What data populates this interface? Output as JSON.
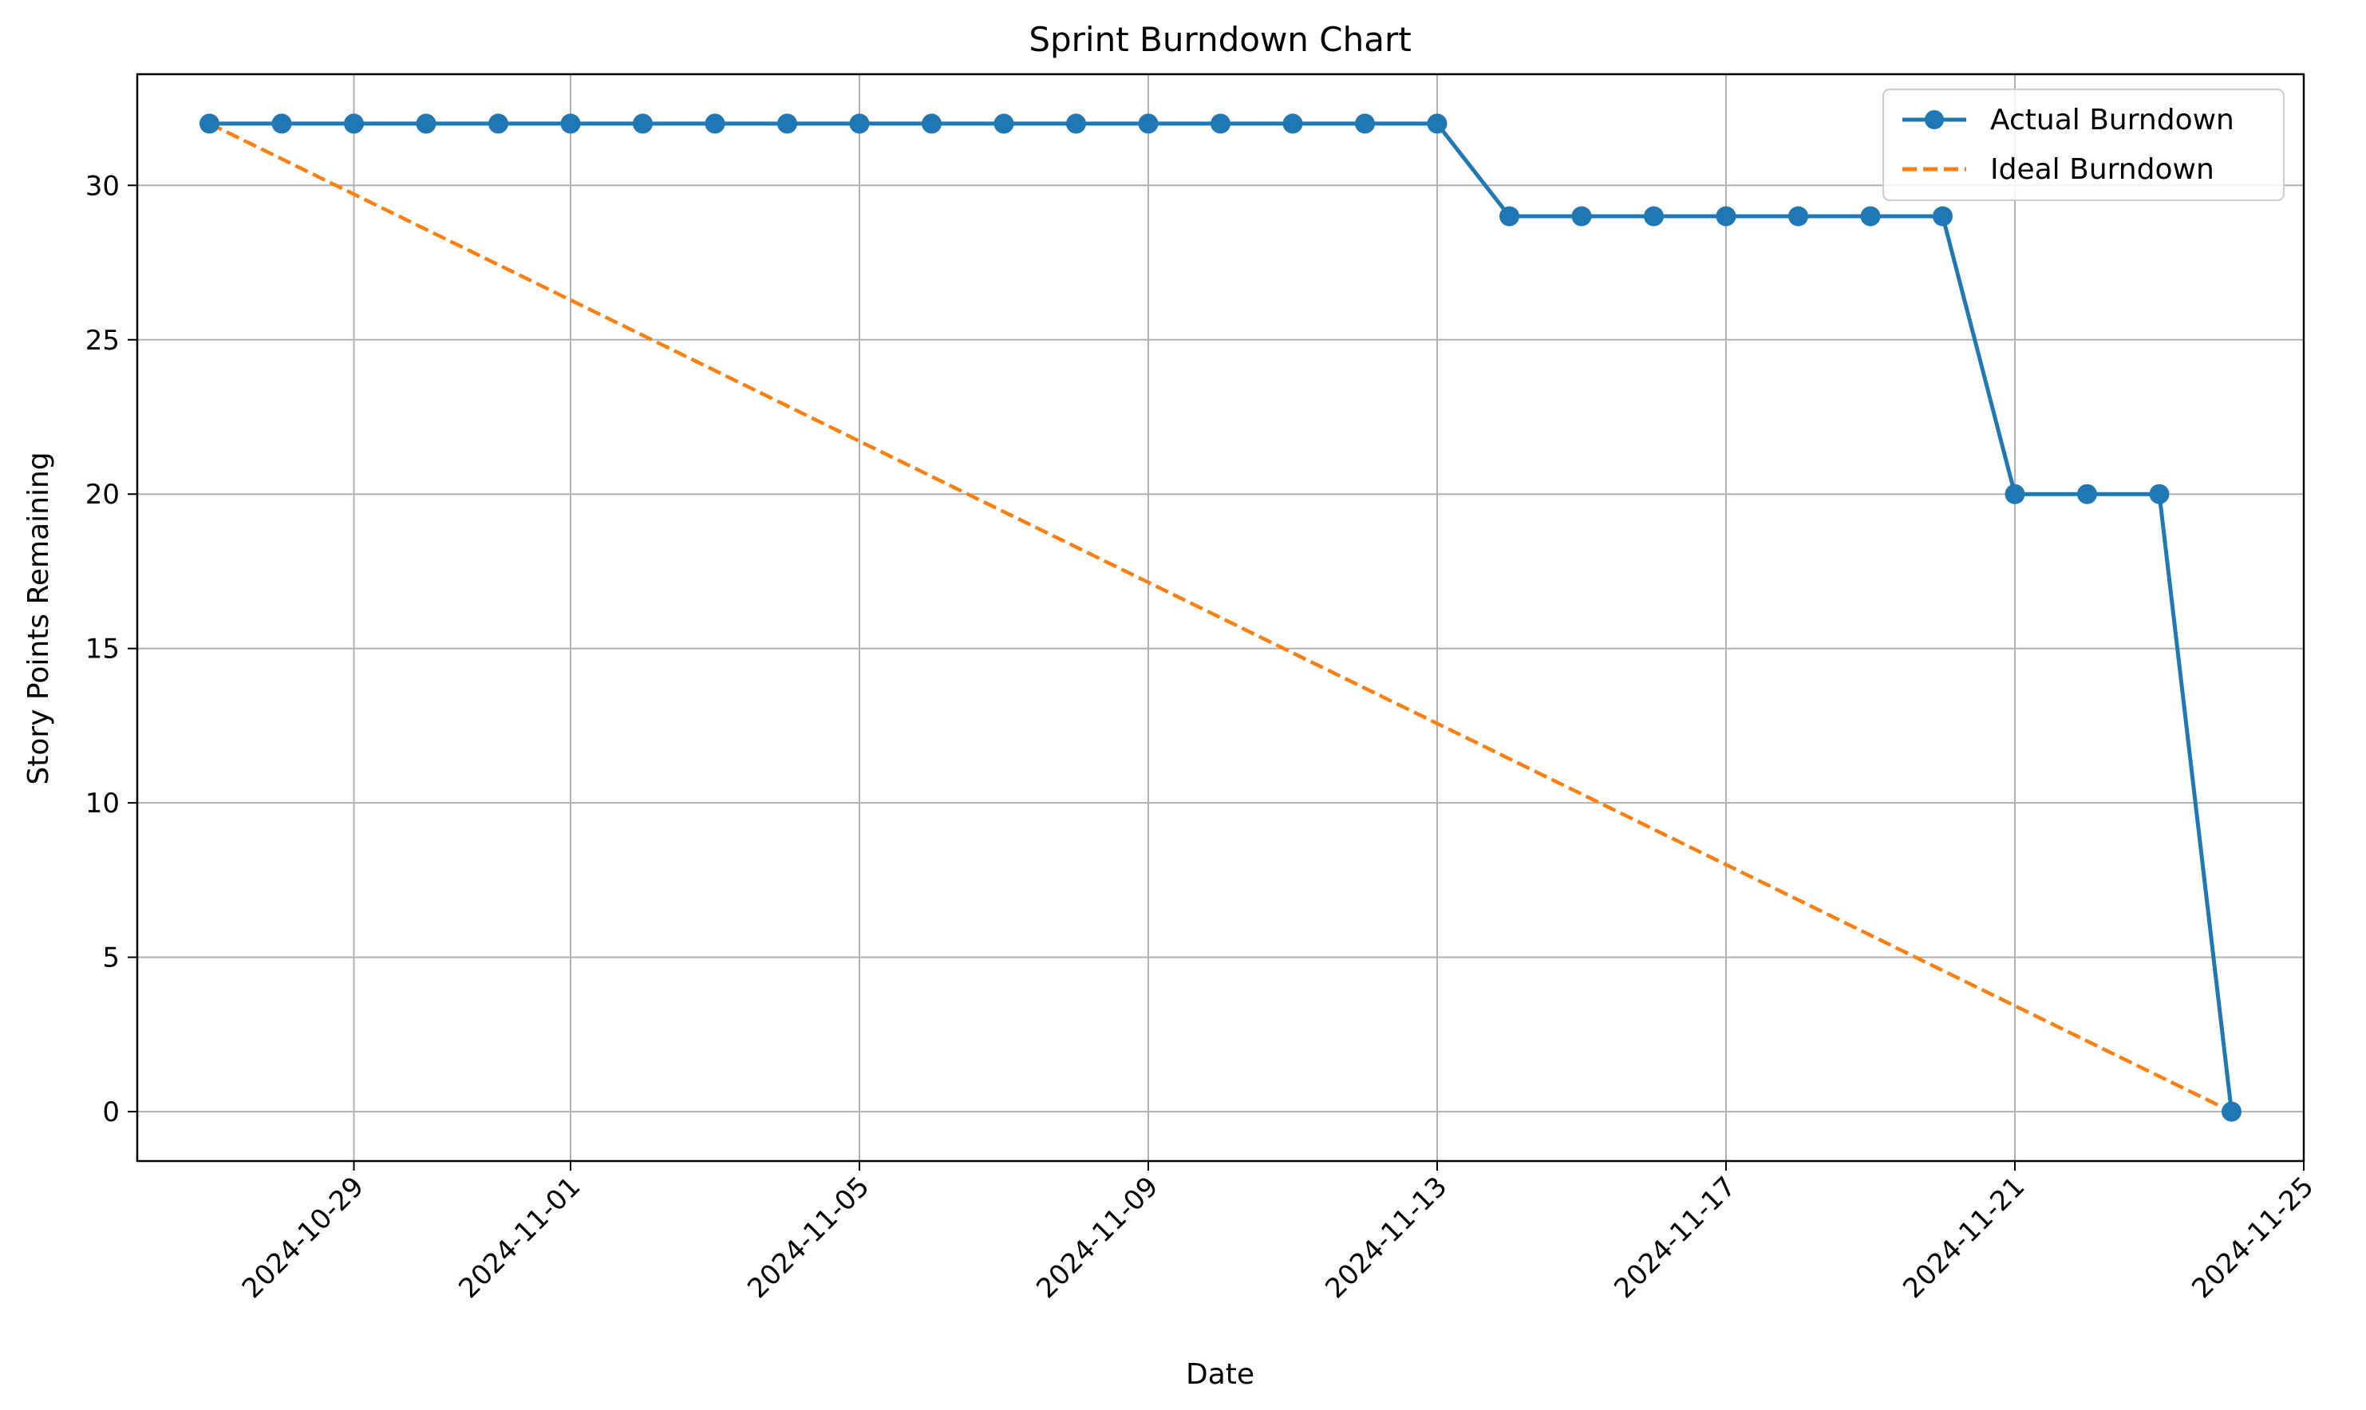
{
  "chart_data": {
    "type": "line",
    "title": "Sprint Burndown Chart",
    "xlabel": "Date",
    "ylabel": "Story Points Remaining",
    "x_ticks": [
      "2024-10-29",
      "2024-11-01",
      "2024-11-05",
      "2024-11-09",
      "2024-11-13",
      "2024-11-17",
      "2024-11-21",
      "2024-11-25"
    ],
    "y_ticks": [
      0,
      5,
      10,
      15,
      20,
      25,
      30
    ],
    "xlim": [
      "2024-10-26",
      "2024-11-25"
    ],
    "ylim": [
      -1.6,
      33.6
    ],
    "grid": true,
    "legend_position": "top-right",
    "series": [
      {
        "name": "Actual Burndown",
        "color": "#1f77b4",
        "style": "solid",
        "marker": "circle",
        "x": [
          "2024-10-27",
          "2024-10-28",
          "2024-10-29",
          "2024-10-30",
          "2024-10-31",
          "2024-11-01",
          "2024-11-02",
          "2024-11-03",
          "2024-11-04",
          "2024-11-05",
          "2024-11-06",
          "2024-11-07",
          "2024-11-08",
          "2024-11-09",
          "2024-11-10",
          "2024-11-11",
          "2024-11-12",
          "2024-11-13",
          "2024-11-14",
          "2024-11-15",
          "2024-11-16",
          "2024-11-17",
          "2024-11-18",
          "2024-11-19",
          "2024-11-20",
          "2024-11-21",
          "2024-11-22",
          "2024-11-23",
          "2024-11-24"
        ],
        "values": [
          32,
          32,
          32,
          32,
          32,
          32,
          32,
          32,
          32,
          32,
          32,
          32,
          32,
          32,
          32,
          32,
          32,
          32,
          29,
          29,
          29,
          29,
          29,
          29,
          29,
          20,
          20,
          20,
          0
        ]
      },
      {
        "name": "Ideal Burndown",
        "color": "#ff7f0e",
        "style": "dashed",
        "marker": "none",
        "x": [
          "2024-10-27",
          "2024-11-24"
        ],
        "values": [
          32,
          0
        ]
      }
    ]
  }
}
